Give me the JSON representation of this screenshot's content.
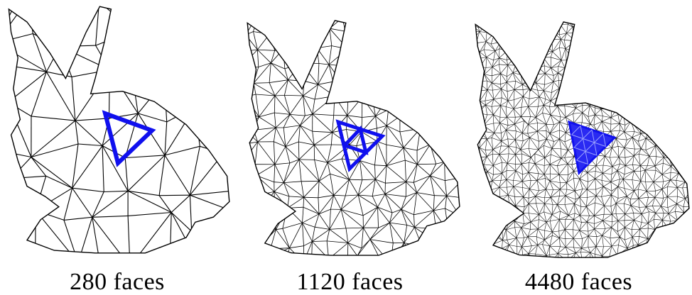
{
  "figure": {
    "panels": [
      {
        "id": "coarse",
        "caption": "280 faces",
        "faces": 280
      },
      {
        "id": "medium",
        "caption": "1120 faces",
        "faces": 1120
      },
      {
        "id": "fine",
        "caption": "4480 faces",
        "faces": 4480
      }
    ],
    "mesh_color": "#000000",
    "highlight_color": "#1010ee",
    "background": "#ffffff"
  }
}
